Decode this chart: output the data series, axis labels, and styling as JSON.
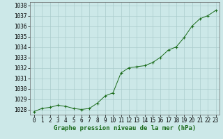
{
  "x": [
    0,
    1,
    2,
    3,
    4,
    5,
    6,
    7,
    8,
    9,
    10,
    11,
    12,
    13,
    14,
    15,
    16,
    17,
    18,
    19,
    20,
    21,
    22,
    23
  ],
  "y": [
    1027.8,
    1028.1,
    1028.2,
    1028.4,
    1028.3,
    1028.1,
    1028.0,
    1028.1,
    1028.6,
    1029.3,
    1029.6,
    1031.5,
    1032.0,
    1032.1,
    1032.2,
    1032.5,
    1033.0,
    1033.7,
    1034.0,
    1034.9,
    1036.0,
    1036.7,
    1037.0,
    1037.5
  ],
  "line_color": "#1a6b1a",
  "marker_color": "#1a6b1a",
  "bg_color": "#cce8e8",
  "grid_color": "#aacccc",
  "ylim_min": 1027.5,
  "ylim_max": 1038.3,
  "yticks": [
    1028,
    1029,
    1030,
    1031,
    1032,
    1033,
    1034,
    1035,
    1036,
    1037,
    1038
  ],
  "xticks": [
    0,
    1,
    2,
    3,
    4,
    5,
    6,
    7,
    8,
    9,
    10,
    11,
    12,
    13,
    14,
    15,
    16,
    17,
    18,
    19,
    20,
    21,
    22,
    23
  ],
  "tick_fontsize": 5.5,
  "label_fontsize": 6.5,
  "label_color": "#1a6b1a",
  "xlabel": "Graphe pression niveau de la mer (hPa)"
}
